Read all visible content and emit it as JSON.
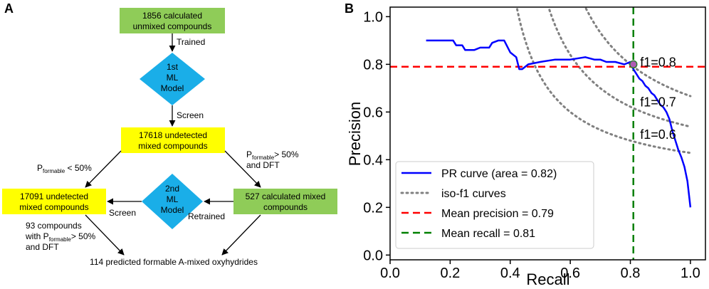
{
  "panel_a": {
    "label": "A",
    "box_top_l1": "1856 calculated",
    "box_top_l2": "unmixed compounds",
    "edge_trained": "Trained",
    "model1_l1": "1st",
    "model1_l2": "ML",
    "model1_l3": "Model",
    "edge_screen_1": "Screen",
    "box_mid_l1": "17618 undetected",
    "box_mid_l2": "mixed compounds",
    "left_branch_p": "P",
    "left_branch_sub": "formable",
    "left_branch_rest": " < 50%",
    "right_branch_p": "P",
    "right_branch_sub": "formable",
    "right_branch_rest": "> 50%",
    "right_branch_l2": "and DFT",
    "box_left_l1": "17091 undetected",
    "box_left_l2": "mixed compounds",
    "model2_l1": "2nd",
    "model2_l2": "ML",
    "model2_l3": "Model",
    "box_right_l1": "527 calculated mixed",
    "box_right_l2": "compounds",
    "edge_screen_2": "Screen",
    "edge_retrained": "Retrained",
    "bottom_note_l1": "93 compounds",
    "bottom_note_l2a": "with P",
    "bottom_note_sub": "formable",
    "bottom_note_l2b": "> 50%",
    "bottom_note_l3": "and DFT",
    "final_text": "114 predicted formable A-mixed oxyhydrides",
    "colors": {
      "green": "#8fcc58",
      "yellow": "#ffff00",
      "blue": "#1aaee8"
    }
  },
  "panel_b": {
    "label": "B"
  },
  "chart_data": {
    "type": "line",
    "xlabel": "Recall",
    "ylabel": "Precision",
    "xlim": [
      0.0,
      1.05
    ],
    "ylim": [
      -0.02,
      1.04
    ],
    "xticks": [
      "0.0",
      "0.2",
      "0.4",
      "0.6",
      "0.8",
      "1.0"
    ],
    "yticks": [
      "0.0",
      "0.2",
      "0.4",
      "0.6",
      "0.8",
      "1.0"
    ],
    "series": [
      {
        "name": "PR curve (area = 0.82)",
        "color": "#0000ff",
        "style": "solid",
        "x": [
          0.12,
          0.21,
          0.22,
          0.24,
          0.25,
          0.28,
          0.3,
          0.33,
          0.34,
          0.36,
          0.38,
          0.4,
          0.42,
          0.43,
          0.44,
          0.46,
          0.5,
          0.55,
          0.6,
          0.65,
          0.68,
          0.7,
          0.72,
          0.75,
          0.78,
          0.8,
          0.81,
          0.82,
          0.83,
          0.84,
          0.85,
          0.86,
          0.87,
          0.88,
          0.9,
          0.91,
          0.92,
          0.93,
          0.94,
          0.95,
          0.96,
          0.97,
          0.98,
          0.99,
          1.0
        ],
        "y": [
          0.9,
          0.9,
          0.88,
          0.88,
          0.86,
          0.86,
          0.87,
          0.87,
          0.89,
          0.9,
          0.9,
          0.85,
          0.83,
          0.78,
          0.78,
          0.8,
          0.81,
          0.82,
          0.82,
          0.83,
          0.82,
          0.82,
          0.81,
          0.81,
          0.8,
          0.81,
          0.78,
          0.76,
          0.74,
          0.73,
          0.71,
          0.7,
          0.68,
          0.67,
          0.63,
          0.62,
          0.6,
          0.57,
          0.52,
          0.48,
          0.44,
          0.41,
          0.37,
          0.31,
          0.2
        ]
      },
      {
        "name": "iso-f1 curves",
        "color": "#808080",
        "style": "dotted",
        "f1_levels": [
          0.6,
          0.7,
          0.8
        ],
        "level_labels": [
          "f1=0.6",
          "f1=0.7",
          "f1=0.8"
        ]
      },
      {
        "name": "Mean precision = 0.79",
        "color": "#ff0000",
        "style": "dashed",
        "y": 0.79
      },
      {
        "name": "Mean recall = 0.81",
        "color": "#008000",
        "style": "dashed",
        "x": 0.81
      }
    ],
    "marker": {
      "x": 0.81,
      "y": 0.8,
      "color": "#b05bb5"
    },
    "legend_position": "lower-left"
  }
}
